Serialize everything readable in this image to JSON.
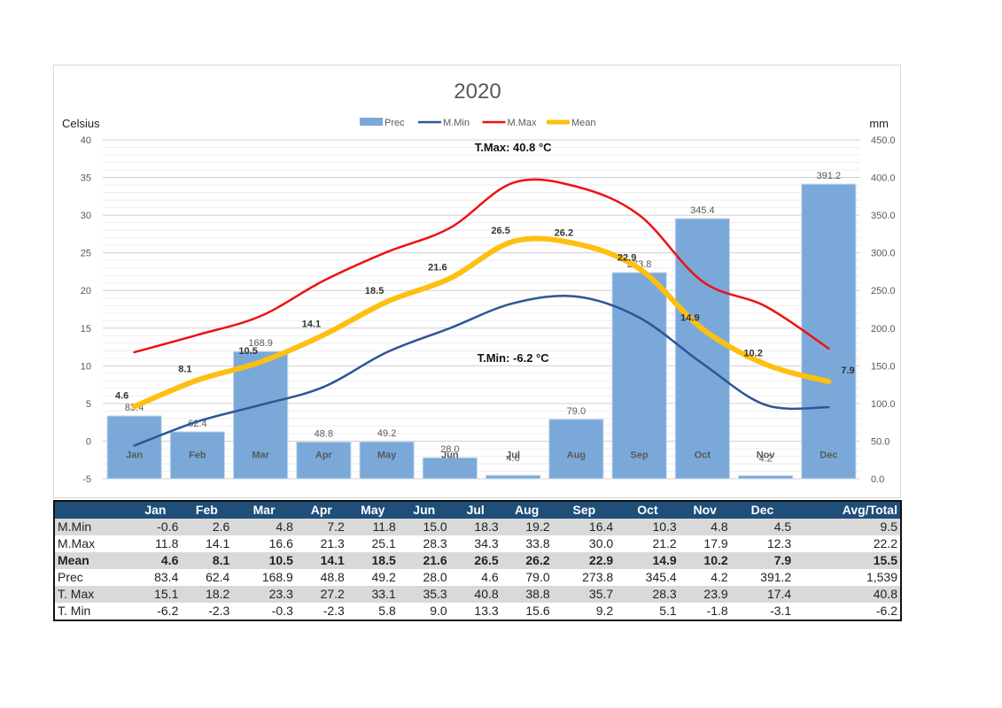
{
  "chart_data": {
    "type": "bar",
    "title": "2020",
    "categories": [
      "Jan",
      "Feb",
      "Mar",
      "Apr",
      "May",
      "Jun",
      "Jul",
      "Aug",
      "Sep",
      "Oct",
      "Nov",
      "Dec"
    ],
    "ylabel_left": "Celsius",
    "ylabel_right": "mm",
    "y_left_range": [
      -5,
      40
    ],
    "y_left_ticks": [
      "-5",
      "0",
      "5",
      "10",
      "15",
      "20",
      "25",
      "30",
      "35",
      "40"
    ],
    "y_right_range": [
      0,
      450
    ],
    "y_right_ticks": [
      "0.0",
      "50.0",
      "100.0",
      "150.0",
      "200.0",
      "250.0",
      "300.0",
      "350.0",
      "400.0",
      "450.0"
    ],
    "legend_position": "top",
    "grid": true,
    "series": [
      {
        "name": "Prec",
        "kind": "bar",
        "axis": "right",
        "color": "#7aa9d9",
        "values": [
          83.4,
          62.4,
          168.9,
          48.8,
          49.2,
          28.0,
          4.6,
          79.0,
          273.8,
          345.4,
          4.2,
          391.2
        ],
        "labels": [
          "83.4",
          "62.4",
          "168.9",
          "48.8",
          "49.2",
          "28.0",
          "4.6",
          "79.0",
          "273.8",
          "345.4",
          "4.2",
          "391.2"
        ]
      },
      {
        "name": "M.Min",
        "kind": "line",
        "axis": "left",
        "color": "#2e5597",
        "values": [
          -0.6,
          2.6,
          4.8,
          7.2,
          11.8,
          15.0,
          18.3,
          19.2,
          16.4,
          10.3,
          4.8,
          4.5
        ]
      },
      {
        "name": "M.Max",
        "kind": "line",
        "axis": "left",
        "color": "#ee1111",
        "values": [
          11.8,
          14.1,
          16.6,
          21.3,
          25.1,
          28.3,
          34.3,
          33.8,
          30.0,
          21.2,
          17.9,
          12.3
        ]
      },
      {
        "name": "Mean",
        "kind": "line",
        "axis": "left",
        "color": "#fdc010",
        "values": [
          4.6,
          8.1,
          10.5,
          14.1,
          18.5,
          21.6,
          26.5,
          26.2,
          22.9,
          14.9,
          10.2,
          7.9
        ],
        "labels": [
          "4.6",
          "8.1",
          "10.5",
          "14.1",
          "18.5",
          "21.6",
          "26.5",
          "26.2",
          "22.9",
          "14.9",
          "10.2",
          "7.9"
        ]
      }
    ],
    "annotations": [
      {
        "text": "T.Max: 40.8 °C",
        "month": "Jul",
        "y": 38.5
      },
      {
        "text": "T.Min: -6.2 °C",
        "month": "Jul",
        "y": 10.5
      }
    ]
  },
  "table": {
    "headers": [
      "",
      "Jan",
      "Feb",
      "Mar",
      "Apr",
      "May",
      "Jun",
      "Jul",
      "Aug",
      "Sep",
      "Oct",
      "Nov",
      "Dec",
      "Avg/Total"
    ],
    "rows": [
      {
        "bold": false,
        "cells": [
          "M.Min",
          "-0.6",
          "2.6",
          "4.8",
          "7.2",
          "11.8",
          "15.0",
          "18.3",
          "19.2",
          "16.4",
          "10.3",
          "4.8",
          "4.5",
          "9.5"
        ]
      },
      {
        "bold": false,
        "cells": [
          "M.Max",
          "11.8",
          "14.1",
          "16.6",
          "21.3",
          "25.1",
          "28.3",
          "34.3",
          "33.8",
          "30.0",
          "21.2",
          "17.9",
          "12.3",
          "22.2"
        ]
      },
      {
        "bold": true,
        "cells": [
          "Mean",
          "4.6",
          "8.1",
          "10.5",
          "14.1",
          "18.5",
          "21.6",
          "26.5",
          "26.2",
          "22.9",
          "14.9",
          "10.2",
          "7.9",
          "15.5"
        ]
      },
      {
        "bold": false,
        "cells": [
          "Prec",
          "83.4",
          "62.4",
          "168.9",
          "48.8",
          "49.2",
          "28.0",
          "4.6",
          "79.0",
          "273.8",
          "345.4",
          "4.2",
          "391.2",
          "1,539"
        ]
      },
      {
        "bold": false,
        "cells": [
          "T. Max",
          "15.1",
          "18.2",
          "23.3",
          "27.2",
          "33.1",
          "35.3",
          "40.8",
          "38.8",
          "35.7",
          "28.3",
          "23.9",
          "17.4",
          "40.8"
        ]
      },
      {
        "bold": false,
        "cells": [
          "T. Min",
          "-6.2",
          "-2.3",
          "-0.3",
          "-2.3",
          "5.8",
          "9.0",
          "13.3",
          "15.6",
          "9.2",
          "5.1",
          "-1.8",
          "-3.1",
          "-6.2"
        ]
      }
    ]
  }
}
